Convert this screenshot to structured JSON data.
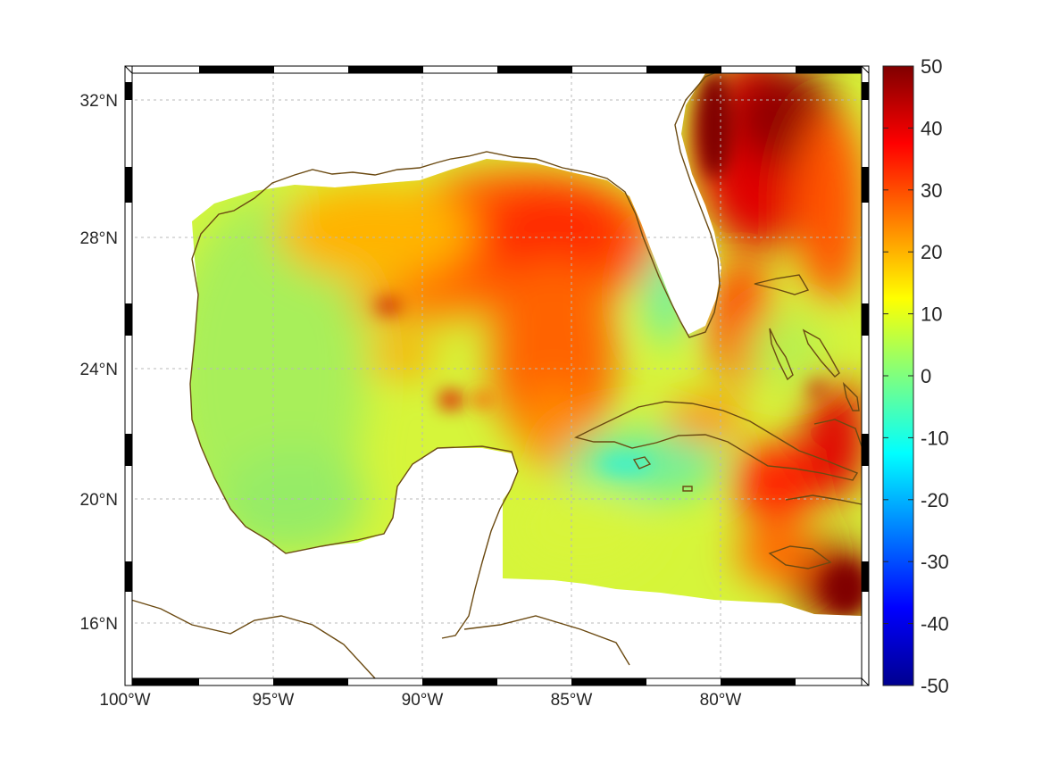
{
  "map": {
    "longitude_ticks": [
      "100°W",
      "95°W",
      "90°W",
      "85°W",
      "80°W"
    ],
    "latitude_ticks": [
      "32°N",
      "28°N",
      "24°N",
      "20°N",
      "16°N"
    ],
    "lon_range": [
      -100,
      -75.2
    ],
    "lat_range": [
      14.2,
      33.0
    ],
    "grid": true,
    "coastline_color": "#6b4a12",
    "frame_style": "alternating black/white border"
  },
  "colorbar": {
    "ticks": [
      "50",
      "40",
      "30",
      "20",
      "10",
      "0",
      "-10",
      "-20",
      "-30",
      "-40",
      "-50"
    ],
    "range": [
      -50,
      50
    ],
    "colormap": "jet",
    "placement": "right"
  },
  "field": {
    "description_of_pattern": "positive values across Gulf and Caribbean; maxima near Gulf Stream off Florida/Georgia, central-northern Gulf, east of Cuba and south of Hispaniola",
    "regions": [
      {
        "name": "Gulf Stream NE",
        "approx_value": 48
      },
      {
        "name": "North-central Gulf",
        "approx_value": 32
      },
      {
        "name": "Loop Current area",
        "approx_value": 27
      },
      {
        "name": "Western Gulf",
        "approx_value": 7
      },
      {
        "name": "Northwest Caribbean",
        "approx_value": 10
      },
      {
        "name": "Windward Passage / Hispaniola",
        "approx_value": 38
      },
      {
        "name": "Southeast corner",
        "approx_value": 50
      },
      {
        "name": "Florida west shelf",
        "approx_value": -3
      }
    ]
  }
}
